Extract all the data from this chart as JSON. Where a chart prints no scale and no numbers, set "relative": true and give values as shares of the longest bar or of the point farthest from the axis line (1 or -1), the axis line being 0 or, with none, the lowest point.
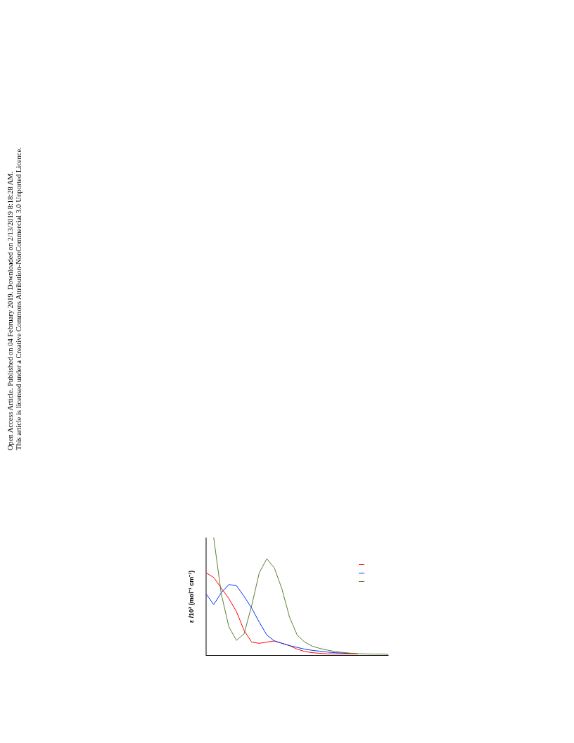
{
  "chart_data": {
    "type": "line",
    "relative": true,
    "ylabel": "ε /10³ (mol⁻¹ cm⁻¹)",
    "categories": [
      null,
      null,
      null,
      null,
      null,
      null,
      null,
      null,
      null,
      null,
      null,
      null,
      null,
      null,
      null,
      null,
      null,
      null,
      null,
      null,
      null,
      null,
      null,
      null,
      null
    ],
    "series": [
      {
        "color": "#ff0000",
        "values": [
          0.7,
          0.66,
          0.57,
          0.48,
          0.37,
          0.21,
          0.11,
          0.1,
          0.11,
          0.12,
          0.1,
          0.08,
          0.05,
          0.03,
          0.02,
          0.015,
          0.01,
          0.01,
          0.01,
          0.01,
          0.01,
          null,
          null,
          null,
          null
        ]
      },
      {
        "color": "#0033ff",
        "values": [
          0.52,
          0.43,
          0.53,
          0.6,
          0.59,
          0.5,
          0.4,
          0.28,
          0.17,
          0.12,
          0.1,
          0.08,
          0.065,
          0.05,
          0.04,
          0.033,
          0.025,
          0.02,
          0.017,
          0.014,
          null,
          null,
          null,
          null,
          null
        ]
      },
      {
        "color": "#5a7f2f",
        "values": [
          null,
          1.0,
          0.52,
          0.24,
          0.125,
          0.18,
          0.42,
          0.7,
          0.82,
          0.74,
          0.56,
          0.32,
          0.17,
          0.11,
          0.075,
          0.056,
          0.042,
          0.03,
          0.022,
          0.016,
          0.012,
          0.01,
          0.008,
          0.008,
          0.006
        ]
      }
    ],
    "marker": "none",
    "annotations": [
      "Open Access Article. Published on 04 February 2019. Downloaded on 2/13/2019 8:18:28 AM.",
      "This article is licensed under a Creative Commons Attribution-NonCommercial 3.0 Unported Licence."
    ]
  }
}
